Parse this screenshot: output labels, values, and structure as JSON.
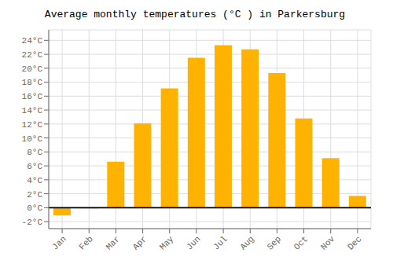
{
  "chart_data": {
    "type": "bar",
    "title": "Average monthly temperatures (°C ) in Parkersburg",
    "categories": [
      "Jan",
      "Feb",
      "Mar",
      "Apr",
      "May",
      "Jun",
      "Jul",
      "Aug",
      "Sep",
      "Oct",
      "Nov",
      "Dec"
    ],
    "values": [
      -1.1,
      -0.1,
      6.6,
      12.1,
      17.1,
      21.5,
      23.3,
      22.7,
      19.3,
      12.8,
      7.1,
      1.7
    ],
    "color": "#FFB300",
    "ylim": [
      -3.0,
      25.5
    ],
    "yticks": [
      {
        "value": -2,
        "label": "-2°C"
      },
      {
        "value": 0,
        "label": "0°C"
      },
      {
        "value": 2,
        "label": "2°C"
      },
      {
        "value": 4,
        "label": "4°C"
      },
      {
        "value": 6,
        "label": "6°C"
      },
      {
        "value": 8,
        "label": "8°C"
      },
      {
        "value": 10,
        "label": "10°C"
      },
      {
        "value": 12,
        "label": "12°C"
      },
      {
        "value": 14,
        "label": "14°C"
      },
      {
        "value": 16,
        "label": "16°C"
      },
      {
        "value": 18,
        "label": "18°C"
      },
      {
        "value": 20,
        "label": "20°C"
      },
      {
        "value": 22,
        "label": "22°C"
      },
      {
        "value": 24,
        "label": "24°C"
      }
    ],
    "grid": true
  }
}
